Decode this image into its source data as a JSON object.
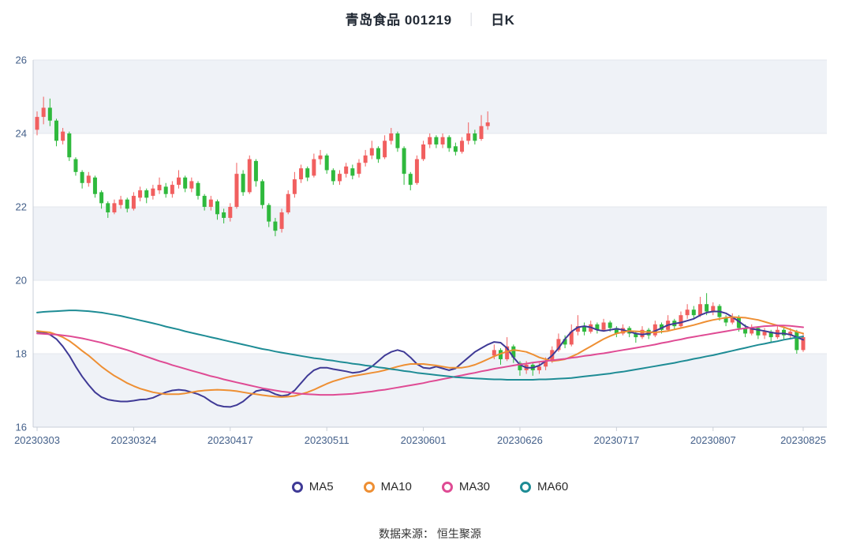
{
  "title": {
    "main": "青岛食品 001219",
    "separator": "｜",
    "period": "日K"
  },
  "footer": {
    "text": "数据来源： 恒生聚源"
  },
  "chart_data": {
    "type": "candlestick",
    "title": "青岛食品 001219 日K",
    "ylim": [
      16,
      26
    ],
    "y_ticks": [
      16,
      18,
      20,
      22,
      24,
      26
    ],
    "x_ticks": [
      {
        "index": 0,
        "label": "20230303"
      },
      {
        "index": 15,
        "label": "20230324"
      },
      {
        "index": 30,
        "label": "20230417"
      },
      {
        "index": 45,
        "label": "20230511"
      },
      {
        "index": 60,
        "label": "20230601"
      },
      {
        "index": 75,
        "label": "20230626"
      },
      {
        "index": 90,
        "label": "20230717"
      },
      {
        "index": 105,
        "label": "20230807"
      },
      {
        "index": 119,
        "label": "20230825"
      }
    ],
    "grid": true,
    "legend_position": "bottom",
    "colors": {
      "up": "#f15f5f",
      "down": "#2fb93d",
      "band": "#eff2f7",
      "axis": "#c9cfd8",
      "gridline": "#e3e7ee"
    },
    "candles": [
      [
        24.1,
        24.45,
        23.95,
        24.6
      ],
      [
        24.45,
        24.7,
        24.25,
        25.0
      ],
      [
        24.7,
        24.35,
        24.2,
        24.95
      ],
      [
        24.35,
        23.8,
        23.65,
        24.4
      ],
      [
        23.8,
        24.05,
        23.7,
        24.15
      ],
      [
        24.0,
        23.35,
        23.25,
        24.05
      ],
      [
        23.3,
        22.95,
        22.85,
        23.35
      ],
      [
        22.95,
        22.65,
        22.5,
        23.0
      ],
      [
        22.65,
        22.85,
        22.55,
        22.95
      ],
      [
        22.8,
        22.35,
        22.25,
        22.85
      ],
      [
        22.4,
        22.1,
        21.95,
        22.45
      ],
      [
        22.1,
        21.85,
        21.7,
        22.15
      ],
      [
        21.85,
        22.1,
        21.8,
        22.2
      ],
      [
        22.05,
        22.2,
        21.95,
        22.3
      ],
      [
        22.2,
        21.95,
        21.85,
        22.25
      ],
      [
        21.95,
        22.3,
        21.9,
        22.4
      ],
      [
        22.25,
        22.45,
        22.15,
        22.55
      ],
      [
        22.45,
        22.25,
        22.1,
        22.5
      ],
      [
        22.3,
        22.5,
        22.2,
        22.6
      ],
      [
        22.45,
        22.6,
        22.35,
        22.8
      ],
      [
        22.55,
        22.35,
        22.25,
        22.65
      ],
      [
        22.35,
        22.6,
        22.25,
        22.7
      ],
      [
        22.6,
        22.8,
        22.5,
        23.0
      ],
      [
        22.8,
        22.5,
        22.4,
        22.85
      ],
      [
        22.5,
        22.7,
        22.4,
        22.8
      ],
      [
        22.65,
        22.3,
        22.2,
        22.7
      ],
      [
        22.3,
        22.0,
        21.9,
        22.35
      ],
      [
        22.0,
        22.2,
        21.9,
        22.3
      ],
      [
        22.15,
        21.8,
        21.65,
        22.2
      ],
      [
        21.85,
        21.7,
        21.55,
        21.95
      ],
      [
        21.7,
        22.0,
        21.6,
        22.1
      ],
      [
        22.0,
        22.9,
        21.95,
        23.2
      ],
      [
        22.9,
        22.4,
        22.3,
        23.0
      ],
      [
        22.4,
        23.3,
        22.35,
        23.4
      ],
      [
        23.25,
        22.7,
        22.55,
        23.3
      ],
      [
        22.7,
        22.05,
        21.95,
        22.75
      ],
      [
        22.05,
        21.6,
        21.45,
        22.1
      ],
      [
        21.6,
        21.35,
        21.2,
        21.7
      ],
      [
        21.4,
        21.85,
        21.3,
        21.95
      ],
      [
        21.85,
        22.35,
        21.8,
        22.45
      ],
      [
        22.35,
        22.75,
        22.25,
        22.95
      ],
      [
        22.75,
        23.05,
        22.65,
        23.15
      ],
      [
        23.05,
        22.8,
        22.7,
        23.1
      ],
      [
        22.85,
        23.3,
        22.8,
        23.45
      ],
      [
        23.3,
        23.4,
        23.15,
        23.55
      ],
      [
        23.4,
        23.0,
        22.9,
        23.45
      ],
      [
        23.0,
        22.7,
        22.6,
        23.05
      ],
      [
        22.7,
        22.9,
        22.6,
        23.0
      ],
      [
        22.9,
        23.1,
        22.8,
        23.2
      ],
      [
        23.05,
        22.85,
        22.75,
        23.15
      ],
      [
        22.9,
        23.2,
        22.8,
        23.3
      ],
      [
        23.2,
        23.4,
        23.1,
        23.55
      ],
      [
        23.4,
        23.6,
        23.3,
        23.8
      ],
      [
        23.6,
        23.3,
        23.2,
        23.65
      ],
      [
        23.35,
        23.8,
        23.3,
        23.95
      ],
      [
        23.8,
        24.0,
        23.7,
        24.15
      ],
      [
        24.0,
        23.6,
        23.5,
        24.05
      ],
      [
        23.6,
        22.9,
        22.6,
        23.65
      ],
      [
        22.9,
        22.6,
        22.45,
        22.95
      ],
      [
        22.65,
        23.3,
        22.6,
        23.4
      ],
      [
        23.3,
        23.7,
        23.25,
        23.8
      ],
      [
        23.7,
        23.9,
        23.6,
        24.0
      ],
      [
        23.9,
        23.7,
        23.6,
        23.95
      ],
      [
        23.7,
        23.9,
        23.6,
        24.0
      ],
      [
        23.9,
        23.6,
        23.5,
        23.95
      ],
      [
        23.65,
        23.5,
        23.4,
        23.75
      ],
      [
        23.5,
        23.8,
        23.45,
        23.9
      ],
      [
        23.8,
        24.0,
        23.7,
        24.3
      ],
      [
        24.0,
        23.8,
        23.7,
        24.1
      ],
      [
        23.85,
        24.2,
        23.8,
        24.5
      ],
      [
        24.2,
        24.3,
        24.1,
        24.6
      ],
      [
        17.95,
        18.1,
        17.85,
        18.25
      ],
      [
        18.1,
        17.85,
        17.7,
        18.15
      ],
      [
        17.85,
        18.2,
        17.8,
        18.45
      ],
      [
        18.2,
        17.9,
        17.75,
        18.25
      ],
      [
        17.75,
        17.55,
        17.4,
        17.8
      ],
      [
        17.55,
        17.7,
        17.45,
        17.8
      ],
      [
        17.7,
        17.55,
        17.4,
        17.75
      ],
      [
        17.55,
        17.65,
        17.45,
        17.75
      ],
      [
        17.65,
        17.8,
        17.55,
        17.9
      ],
      [
        17.8,
        18.1,
        17.75,
        18.2
      ],
      [
        18.1,
        18.4,
        18.05,
        18.55
      ],
      [
        18.4,
        18.25,
        18.15,
        18.5
      ],
      [
        18.25,
        18.6,
        18.2,
        18.8
      ],
      [
        18.6,
        18.75,
        18.5,
        19.05
      ],
      [
        18.75,
        18.6,
        18.5,
        18.85
      ],
      [
        18.6,
        18.8,
        18.55,
        18.9
      ],
      [
        18.8,
        18.65,
        18.55,
        18.85
      ],
      [
        18.65,
        18.85,
        18.6,
        18.95
      ],
      [
        18.85,
        18.7,
        18.6,
        18.9
      ],
      [
        18.7,
        18.55,
        18.45,
        18.75
      ],
      [
        18.55,
        18.7,
        18.5,
        18.8
      ],
      [
        18.7,
        18.55,
        18.45,
        18.75
      ],
      [
        18.55,
        18.45,
        18.3,
        18.6
      ],
      [
        18.45,
        18.65,
        18.4,
        18.75
      ],
      [
        18.65,
        18.5,
        18.4,
        18.7
      ],
      [
        18.5,
        18.8,
        18.45,
        18.9
      ],
      [
        18.8,
        18.65,
        18.55,
        18.85
      ],
      [
        18.65,
        18.9,
        18.6,
        19.05
      ],
      [
        18.9,
        18.75,
        18.65,
        18.95
      ],
      [
        18.75,
        19.05,
        18.7,
        19.15
      ],
      [
        19.05,
        19.2,
        18.95,
        19.35
      ],
      [
        19.2,
        19.05,
        18.95,
        19.3
      ],
      [
        19.05,
        19.35,
        19.0,
        19.55
      ],
      [
        19.35,
        19.15,
        19.05,
        19.65
      ],
      [
        19.15,
        19.3,
        19.05,
        19.4
      ],
      [
        19.3,
        19.0,
        18.9,
        19.35
      ],
      [
        19.0,
        18.85,
        18.75,
        19.05
      ],
      [
        18.85,
        19.0,
        18.8,
        19.1
      ],
      [
        19.0,
        18.7,
        18.6,
        19.05
      ],
      [
        18.7,
        18.55,
        18.45,
        18.8
      ],
      [
        18.55,
        18.7,
        18.5,
        18.8
      ],
      [
        18.7,
        18.5,
        18.4,
        18.75
      ],
      [
        18.5,
        18.6,
        18.4,
        18.7
      ],
      [
        18.6,
        18.45,
        18.3,
        18.65
      ],
      [
        18.45,
        18.65,
        18.4,
        18.75
      ],
      [
        18.65,
        18.5,
        18.4,
        18.7
      ],
      [
        18.5,
        18.6,
        18.4,
        18.7
      ],
      [
        18.6,
        18.1,
        18.0,
        18.65
      ],
      [
        18.1,
        18.45,
        18.05,
        18.55
      ]
    ],
    "series": [
      {
        "name": "MA5",
        "color": "#3f3a96",
        "values": [
          18.6,
          18.58,
          18.52,
          18.4,
          18.2,
          17.95,
          17.65,
          17.38,
          17.15,
          16.95,
          16.82,
          16.75,
          16.72,
          16.7,
          16.7,
          16.72,
          16.75,
          16.76,
          16.8,
          16.88,
          16.95,
          17.0,
          17.02,
          17.0,
          16.95,
          16.9,
          16.82,
          16.7,
          16.6,
          16.56,
          16.55,
          16.6,
          16.7,
          16.85,
          16.98,
          17.02,
          16.98,
          16.9,
          16.85,
          16.88,
          17.0,
          17.2,
          17.4,
          17.55,
          17.62,
          17.62,
          17.58,
          17.55,
          17.52,
          17.48,
          17.5,
          17.55,
          17.65,
          17.8,
          17.95,
          18.05,
          18.1,
          18.05,
          17.9,
          17.72,
          17.62,
          17.6,
          17.65,
          17.6,
          17.55,
          17.6,
          17.75,
          17.9,
          18.05,
          18.15,
          18.25,
          18.32,
          18.3,
          18.15,
          17.9,
          17.7,
          17.62,
          17.62,
          17.68,
          17.8,
          17.95,
          18.15,
          18.4,
          18.6,
          18.72,
          18.75,
          18.72,
          18.65,
          18.62,
          18.65,
          18.68,
          18.65,
          18.6,
          18.55,
          18.52,
          18.55,
          18.62,
          18.7,
          18.78,
          18.82,
          18.85,
          18.9,
          18.95,
          19.05,
          19.12,
          19.15,
          19.15,
          19.1,
          19.0,
          18.88,
          18.75,
          18.68,
          18.65,
          18.62,
          18.58,
          18.55,
          18.55,
          18.52,
          18.45,
          18.38
        ]
      },
      {
        "name": "MA10",
        "color": "#ee8f33",
        "values": [
          18.62,
          18.6,
          18.58,
          18.52,
          18.45,
          18.35,
          18.22,
          18.08,
          17.95,
          17.8,
          17.65,
          17.52,
          17.4,
          17.3,
          17.2,
          17.12,
          17.05,
          17.0,
          16.95,
          16.92,
          16.9,
          16.9,
          16.9,
          16.92,
          16.95,
          16.98,
          17.0,
          17.01,
          17.02,
          17.01,
          17.0,
          16.98,
          16.95,
          16.92,
          16.9,
          16.87,
          16.85,
          16.83,
          16.82,
          16.83,
          16.85,
          16.9,
          16.95,
          17.02,
          17.1,
          17.18,
          17.25,
          17.3,
          17.35,
          17.39,
          17.42,
          17.45,
          17.48,
          17.51,
          17.55,
          17.6,
          17.65,
          17.69,
          17.72,
          17.72,
          17.72,
          17.7,
          17.68,
          17.65,
          17.62,
          17.62,
          17.62,
          17.65,
          17.7,
          17.77,
          17.85,
          17.93,
          18.0,
          18.06,
          18.1,
          18.08,
          18.05,
          17.98,
          17.9,
          17.85,
          17.8,
          17.82,
          17.85,
          17.92,
          18.0,
          18.1,
          18.2,
          18.3,
          18.4,
          18.48,
          18.55,
          18.59,
          18.62,
          18.61,
          18.6,
          18.59,
          18.58,
          18.6,
          18.62,
          18.66,
          18.7,
          18.74,
          18.78,
          18.83,
          18.88,
          18.92,
          18.95,
          18.98,
          19.0,
          18.99,
          18.98,
          18.95,
          18.92,
          18.87,
          18.82,
          18.77,
          18.72,
          18.66,
          18.6,
          18.55
        ]
      },
      {
        "name": "MA30",
        "color": "#df4b94",
        "values": [
          18.55,
          18.54,
          18.53,
          18.52,
          18.5,
          18.48,
          18.45,
          18.42,
          18.38,
          18.34,
          18.3,
          18.25,
          18.2,
          18.15,
          18.1,
          18.04,
          17.98,
          17.92,
          17.86,
          17.8,
          17.75,
          17.69,
          17.64,
          17.59,
          17.54,
          17.49,
          17.44,
          17.39,
          17.35,
          17.3,
          17.26,
          17.22,
          17.18,
          17.14,
          17.1,
          17.06,
          17.03,
          17.0,
          16.97,
          16.95,
          16.93,
          16.91,
          16.9,
          16.89,
          16.88,
          16.88,
          16.88,
          16.89,
          16.9,
          16.91,
          16.93,
          16.95,
          16.97,
          17.0,
          17.02,
          17.05,
          17.08,
          17.11,
          17.14,
          17.17,
          17.2,
          17.24,
          17.27,
          17.31,
          17.34,
          17.38,
          17.41,
          17.45,
          17.48,
          17.52,
          17.55,
          17.59,
          17.62,
          17.65,
          17.68,
          17.71,
          17.73,
          17.76,
          17.78,
          17.8,
          17.82,
          17.84,
          17.86,
          17.89,
          17.91,
          17.94,
          17.96,
          17.99,
          18.01,
          18.04,
          18.07,
          18.1,
          18.13,
          18.16,
          18.19,
          18.22,
          18.25,
          18.29,
          18.32,
          18.36,
          18.39,
          18.43,
          18.46,
          18.49,
          18.52,
          18.55,
          18.58,
          18.61,
          18.64,
          18.67,
          18.69,
          18.71,
          18.73,
          18.75,
          18.76,
          18.77,
          18.77,
          18.76,
          18.74,
          18.72
        ]
      },
      {
        "name": "MA60",
        "color": "#1e8c95",
        "values": [
          19.12,
          19.14,
          19.15,
          19.16,
          19.17,
          19.18,
          19.18,
          19.17,
          19.16,
          19.14,
          19.12,
          19.09,
          19.06,
          19.03,
          18.99,
          18.95,
          18.91,
          18.87,
          18.83,
          18.79,
          18.74,
          18.7,
          18.66,
          18.61,
          18.57,
          18.53,
          18.49,
          18.45,
          18.41,
          18.37,
          18.33,
          18.29,
          18.25,
          18.21,
          18.17,
          18.13,
          18.1,
          18.06,
          18.03,
          18.0,
          17.97,
          17.94,
          17.91,
          17.88,
          17.86,
          17.83,
          17.81,
          17.78,
          17.76,
          17.73,
          17.71,
          17.68,
          17.66,
          17.63,
          17.61,
          17.58,
          17.56,
          17.53,
          17.51,
          17.48,
          17.46,
          17.44,
          17.42,
          17.4,
          17.38,
          17.36,
          17.35,
          17.34,
          17.33,
          17.32,
          17.31,
          17.3,
          17.3,
          17.29,
          17.29,
          17.29,
          17.29,
          17.29,
          17.3,
          17.3,
          17.31,
          17.32,
          17.33,
          17.34,
          17.36,
          17.38,
          17.4,
          17.42,
          17.44,
          17.46,
          17.49,
          17.51,
          17.54,
          17.57,
          17.6,
          17.63,
          17.66,
          17.69,
          17.72,
          17.75,
          17.79,
          17.82,
          17.86,
          17.89,
          17.93,
          17.96,
          18.0,
          18.04,
          18.08,
          18.12,
          18.16,
          18.2,
          18.24,
          18.27,
          18.31,
          18.34,
          18.38,
          18.41,
          18.44,
          18.47
        ]
      }
    ]
  }
}
